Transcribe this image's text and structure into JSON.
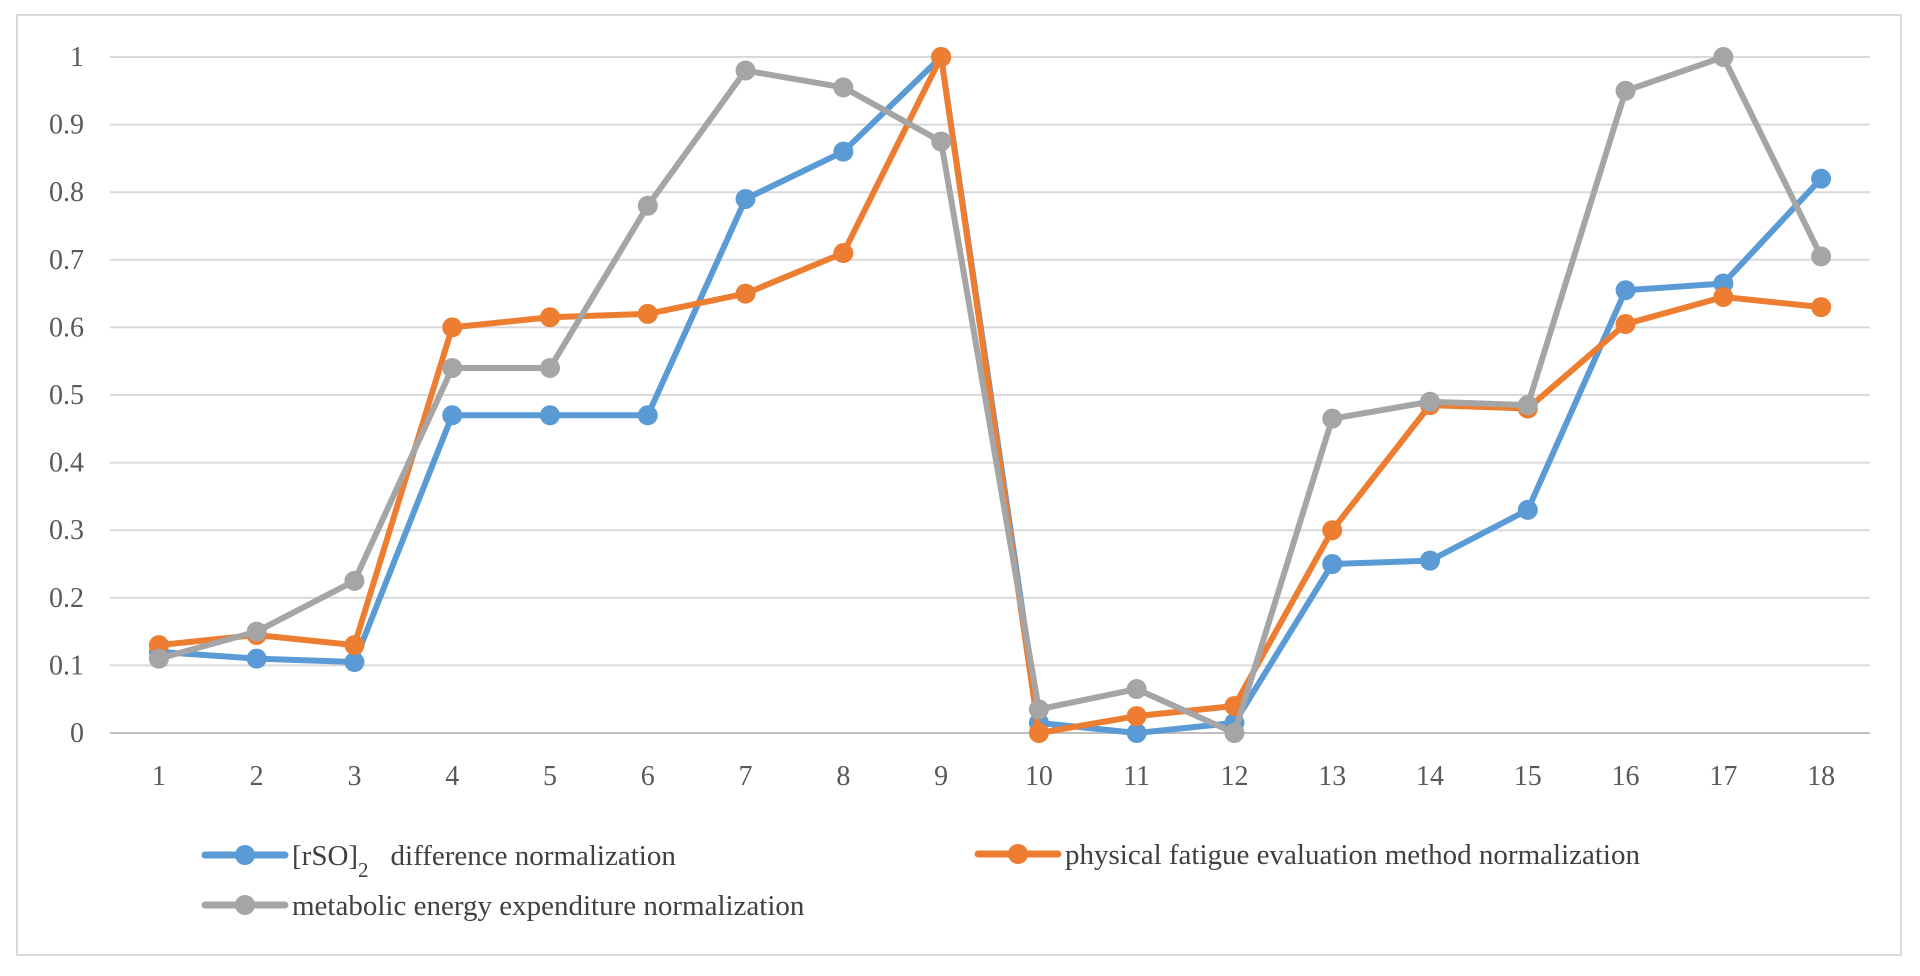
{
  "chart_data": {
    "type": "line",
    "title": "",
    "xlabel": "",
    "ylabel": "",
    "categories": [
      "1",
      "2",
      "3",
      "4",
      "5",
      "6",
      "7",
      "8",
      "9",
      "10",
      "11",
      "12",
      "13",
      "14",
      "15",
      "16",
      "17",
      "18"
    ],
    "ylim": [
      0,
      1
    ],
    "yticks": [
      "0",
      "0.1",
      "0.2",
      "0.3",
      "0.4",
      "0.5",
      "0.6",
      "0.7",
      "0.8",
      "0.9",
      "1"
    ],
    "grid": true,
    "legend_position": "bottom",
    "series": [
      {
        "name_main": "[rSO]",
        "name_sub": "2",
        "name_rest": "difference normalization",
        "color": "#5B9BD5",
        "values": [
          0.12,
          0.11,
          0.105,
          0.47,
          0.47,
          0.47,
          0.79,
          0.86,
          1.0,
          0.015,
          0.0,
          0.015,
          0.25,
          0.255,
          0.33,
          0.655,
          0.665,
          0.82
        ]
      },
      {
        "name": "physical fatigue evaluation method normalization",
        "color": "#ED7D31",
        "values": [
          0.13,
          0.145,
          0.13,
          0.6,
          0.615,
          0.62,
          0.65,
          0.71,
          1.0,
          0.0,
          0.025,
          0.04,
          0.3,
          0.485,
          0.48,
          0.605,
          0.645,
          0.63
        ]
      },
      {
        "name": "metabolic energy expenditure normalization",
        "color": "#A5A5A5",
        "values": [
          0.11,
          0.15,
          0.225,
          0.54,
          0.54,
          0.78,
          0.98,
          0.955,
          0.875,
          0.035,
          0.065,
          0.0,
          0.465,
          0.49,
          0.485,
          0.95,
          1.0,
          0.705
        ]
      }
    ]
  }
}
